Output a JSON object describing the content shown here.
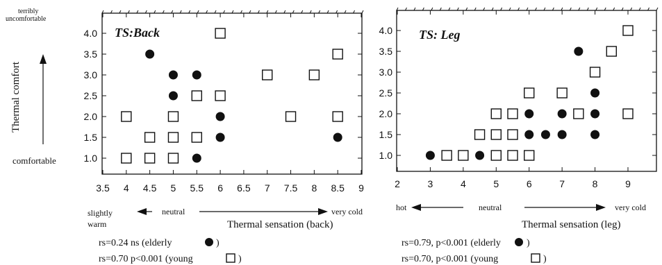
{
  "chart_data": [
    {
      "type": "scatter",
      "panel_label": "TS:Back",
      "x_tick_labels": [
        "3.5",
        "4",
        "4.5",
        "5",
        "5.5",
        "6",
        "6.5",
        "7",
        "7.5",
        "8",
        "8.5",
        "9"
      ],
      "y_tick_labels": [
        "1.0",
        "1.5",
        "2.0",
        "2.5",
        "3.0",
        "3.5",
        "4.0"
      ],
      "xlim": [
        3.5,
        9
      ],
      "ylim": [
        1.0,
        4.0
      ],
      "ylabel": "Thermal comfort",
      "y_top_note": "terribly uncomfortable",
      "y_bottom_note": "comfortable",
      "xlabel": "Thermal sensation (back)",
      "x_left_note": "slightly warm",
      "x_mid_note": "neutral",
      "x_right_note": "very cold",
      "series": [
        {
          "name": "elderly",
          "marker": "filled-circle",
          "points": [
            [
              4.5,
              3.5
            ],
            [
              5,
              3.0
            ],
            [
              5.5,
              3.0
            ],
            [
              5,
              2.5
            ],
            [
              6,
              2.0
            ],
            [
              6,
              1.5
            ],
            [
              5.5,
              1.0
            ],
            [
              8.5,
              1.5
            ]
          ]
        },
        {
          "name": "young",
          "marker": "open-square",
          "points": [
            [
              4,
              2.0
            ],
            [
              4,
              1.0
            ],
            [
              4.5,
              1.5
            ],
            [
              4.5,
              1.0
            ],
            [
              5,
              2.0
            ],
            [
              5,
              1.5
            ],
            [
              5,
              1.0
            ],
            [
              5.5,
              2.5
            ],
            [
              5.5,
              1.5
            ],
            [
              6,
              4.0
            ],
            [
              6,
              2.5
            ],
            [
              7,
              3.0
            ],
            [
              7.5,
              2.0
            ],
            [
              8,
              3.0
            ],
            [
              8.5,
              3.5
            ],
            [
              8.5,
              2.0
            ]
          ]
        }
      ],
      "stats": [
        {
          "text": "rs=0.24  ns  (elderly",
          "marker": "filled-circle"
        },
        {
          "text": "rs=0.70  p<0.001  (young",
          "marker": "open-square"
        }
      ]
    },
    {
      "type": "scatter",
      "panel_label": "TS: Leg",
      "x_tick_labels": [
        "2",
        "3",
        "4",
        "5",
        "6",
        "7",
        "8",
        "9"
      ],
      "y_tick_labels": [
        "1.0",
        "1.5",
        "2.0",
        "2.5",
        "3.0",
        "3.5",
        "4.0"
      ],
      "xlim": [
        2,
        10
      ],
      "ylim": [
        1.0,
        4.0
      ],
      "xlabel": "Thermal sensation (leg)",
      "x_left_note": "hot",
      "x_mid_note": "neutral",
      "x_right_note": "very cold",
      "series": [
        {
          "name": "elderly",
          "marker": "filled-circle",
          "points": [
            [
              3,
              1.0
            ],
            [
              4.5,
              1.0
            ],
            [
              6,
              2.0
            ],
            [
              6,
              1.5
            ],
            [
              6.5,
              1.5
            ],
            [
              7,
              2.0
            ],
            [
              7,
              1.5
            ],
            [
              7.5,
              3.5
            ],
            [
              8,
              2.5
            ],
            [
              8,
              2.0
            ],
            [
              8,
              1.5
            ]
          ]
        },
        {
          "name": "young",
          "marker": "open-square",
          "points": [
            [
              3.5,
              1.0
            ],
            [
              4,
              1.0
            ],
            [
              4.5,
              1.5
            ],
            [
              5,
              2.0
            ],
            [
              5,
              1.5
            ],
            [
              5,
              1.0
            ],
            [
              5.5,
              2.0
            ],
            [
              5.5,
              1.5
            ],
            [
              5.5,
              1.0
            ],
            [
              6,
              2.5
            ],
            [
              6,
              1.0
            ],
            [
              7,
              2.5
            ],
            [
              7.5,
              2.0
            ],
            [
              8,
              3.0
            ],
            [
              8.5,
              3.5
            ],
            [
              9,
              4.0
            ],
            [
              9,
              2.0
            ]
          ]
        }
      ],
      "stats": [
        {
          "text": "rs=0.79,  p<0.001  (elderly",
          "marker": "filled-circle"
        },
        {
          "text": "rs=0.70,  p<0.001  (young",
          "marker": "open-square"
        }
      ]
    }
  ]
}
